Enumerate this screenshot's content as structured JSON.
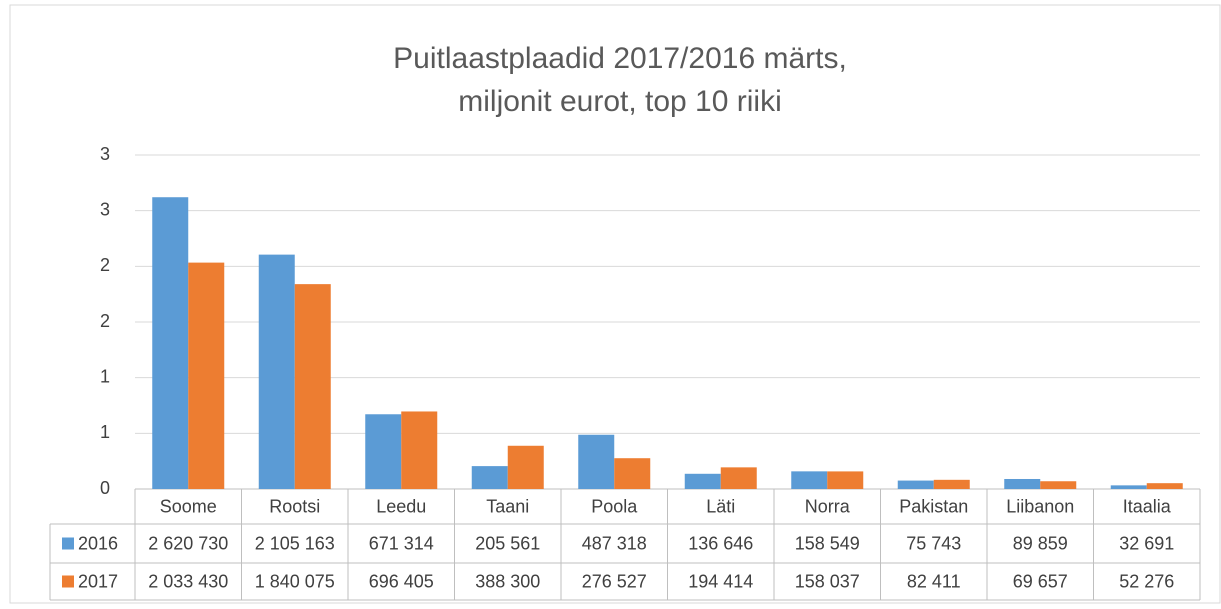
{
  "chart_data": {
    "type": "bar",
    "title": [
      "Puitlaastplaadid 2017/2016 märts,",
      "miljonit eurot, top 10 riiki"
    ],
    "categories": [
      "Soome",
      "Rootsi",
      "Leedu",
      "Taani",
      "Poola",
      "Läti",
      "Norra",
      "Pakistan",
      "Liibanon",
      "Itaalia"
    ],
    "series": [
      {
        "name": "2016",
        "color": "#5b9bd5",
        "values": [
          2.62073,
          2.105163,
          0.671314,
          0.205561,
          0.487318,
          0.136646,
          0.158549,
          0.075743,
          0.089859,
          0.032691
        ],
        "value_labels": [
          "2 620 730",
          "2 105 163",
          "671 314",
          "205 561",
          "487 318",
          "136 646",
          "158 549",
          "75 743",
          "89 859",
          "32 691"
        ]
      },
      {
        "name": "2017",
        "color": "#ed7d31",
        "values": [
          2.03343,
          1.840075,
          0.696405,
          0.3883,
          0.276527,
          0.194414,
          0.158037,
          0.082411,
          0.069657,
          0.052276
        ],
        "value_labels": [
          "2 033 430",
          "1 840 075",
          "696 405",
          "388 300",
          "276 527",
          "194 414",
          "158 037",
          "82 411",
          "69 657",
          "52 276"
        ]
      }
    ],
    "ylim": [
      0,
      3
    ],
    "yticks": [
      0,
      {
        "value": 0.5,
        "label": "1"
      },
      1,
      {
        "value": 1.5,
        "label": "2"
      },
      2,
      {
        "value": 2.5,
        "label": "3"
      },
      3
    ],
    "grid": true
  }
}
